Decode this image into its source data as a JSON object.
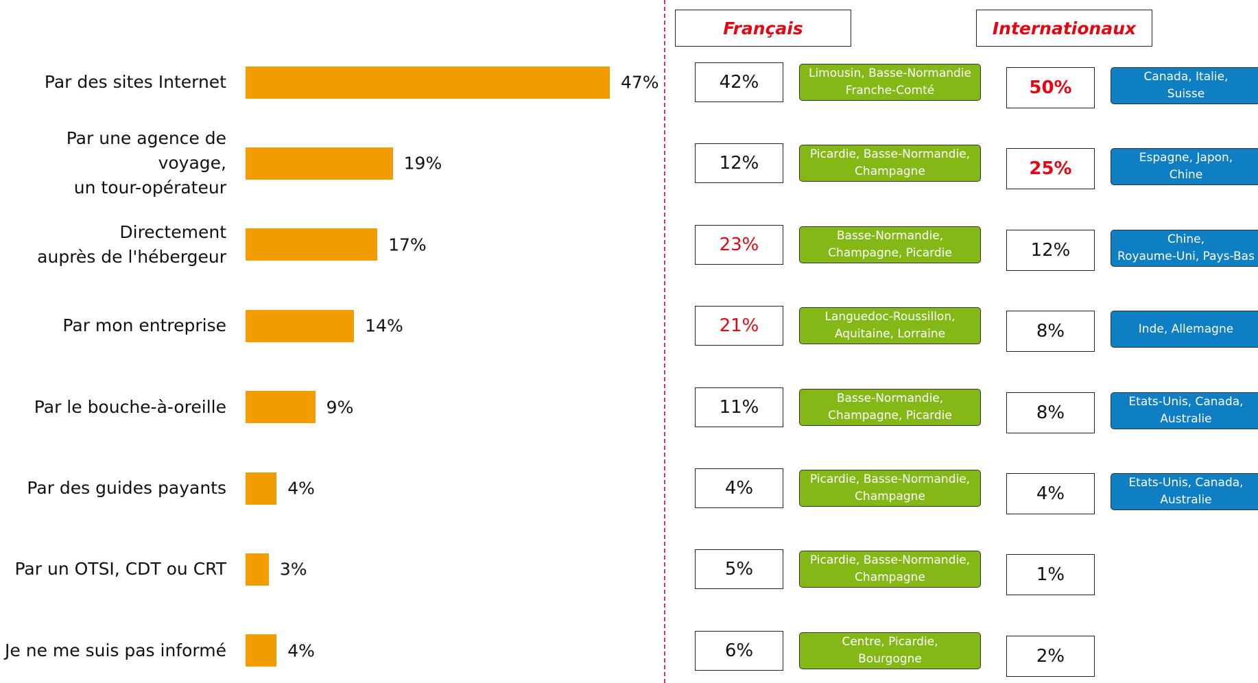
{
  "chart_data": {
    "type": "hbar",
    "categories": [
      "Par des sites Internet",
      "Par une agence de voyage,\nun tour-opérateur",
      "Directement\nauprès de l'hébergeur",
      "Par mon entreprise",
      "Par le bouche-à-oreille",
      "Par des guides payants",
      "Par un OTSI, CDT ou CRT",
      "Je ne me suis pas informé"
    ],
    "values": [
      47,
      19,
      17,
      14,
      9,
      4,
      3,
      4
    ],
    "value_labels": [
      "47%",
      "19%",
      "17%",
      "14%",
      "9%",
      "4%",
      "3%",
      "4%"
    ],
    "color": "#f39c00"
  },
  "comparison": {
    "headers": [
      "Français",
      "Internationaux"
    ],
    "highlight_color": "#e30613",
    "fr_region_color": "#84b817",
    "int_region_color": "#0f7fc4",
    "rows": [
      {
        "fr": "42%",
        "fr_highlight": false,
        "fr_regions": [
          "Limousin, Basse-Normandie",
          "Franche-Comté"
        ],
        "int": "50%",
        "int_highlight": true,
        "int_regions": [
          "Canada, Italie,",
          "Suisse"
        ]
      },
      {
        "fr": "12%",
        "fr_highlight": false,
        "fr_regions": [
          "Picardie, Basse-Normandie,",
          "Champagne"
        ],
        "int": "25%",
        "int_highlight": true,
        "int_regions": [
          "Espagne, Japon,",
          "Chine"
        ]
      },
      {
        "fr": "23%",
        "fr_highlight": true,
        "fr_regions": [
          "Basse-Normandie,",
          "Champagne, Picardie"
        ],
        "int": "12%",
        "int_highlight": false,
        "int_regions": [
          "Chine,",
          "Royaume-Uni, Pays-Bas"
        ]
      },
      {
        "fr": "21%",
        "fr_highlight": true,
        "fr_regions": [
          "Languedoc-Roussillon,",
          "Aquitaine, Lorraine"
        ],
        "int": "8%",
        "int_highlight": false,
        "int_regions": [
          "Inde, Allemagne"
        ]
      },
      {
        "fr": "11%",
        "fr_highlight": false,
        "fr_regions": [
          "Basse-Normandie,",
          "Champagne, Picardie"
        ],
        "int": "8%",
        "int_highlight": false,
        "int_regions": [
          "Etats-Unis, Canada,",
          "Australie"
        ]
      },
      {
        "fr": "4%",
        "fr_highlight": false,
        "fr_regions": [
          "Picardie, Basse-Normandie,",
          "Champagne"
        ],
        "int": "4%",
        "int_highlight": false,
        "int_regions": [
          "Etats-Unis, Canada,",
          "Australie"
        ]
      },
      {
        "fr": "5%",
        "fr_highlight": false,
        "fr_regions": [
          "Picardie, Basse-Normandie,",
          "Champagne"
        ],
        "int": "1%",
        "int_highlight": false,
        "int_regions": null
      },
      {
        "fr": "6%",
        "fr_highlight": false,
        "fr_regions": [
          "Centre, Picardie,",
          "Bourgogne"
        ],
        "int": "2%",
        "int_highlight": false,
        "int_regions": null
      }
    ]
  }
}
